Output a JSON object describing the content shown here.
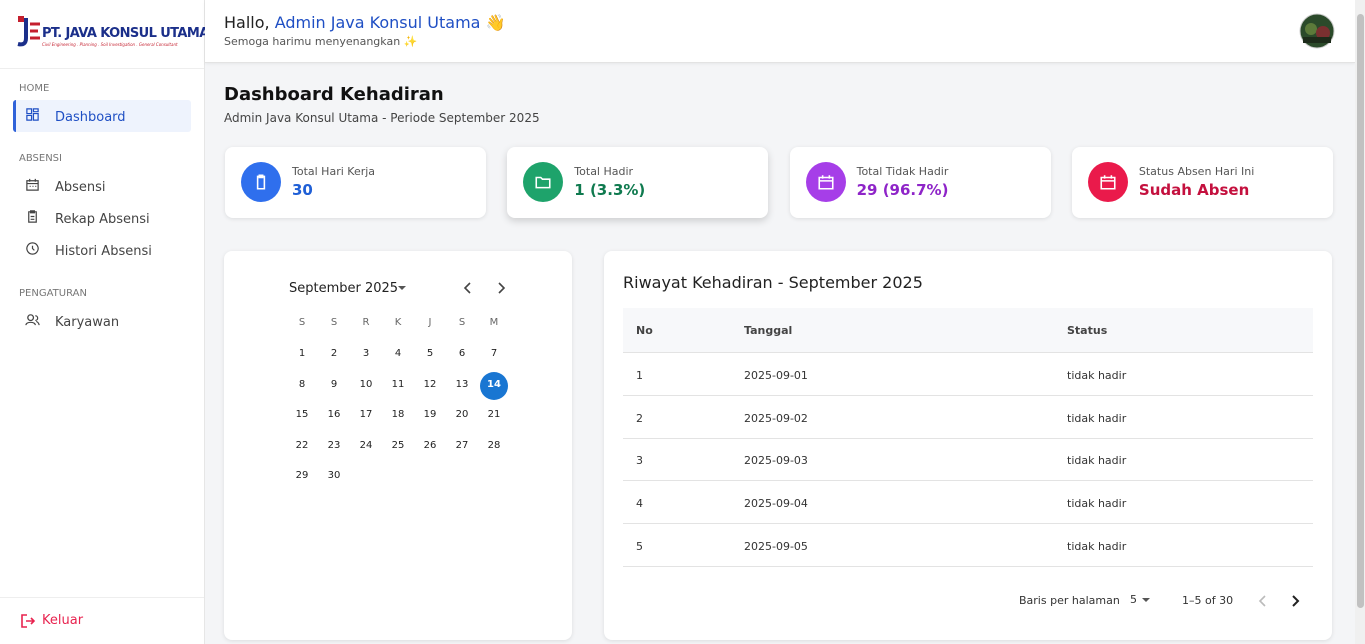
{
  "logo": {
    "name": "PT. JAVA KONSUL UTAMA",
    "tagline": "Civil Engineering . Planning . Soil Investigation . General Consultant"
  },
  "sidebar": {
    "sections": [
      {
        "title": "HOME",
        "items": [
          {
            "label": "Dashboard",
            "active": true
          }
        ]
      },
      {
        "title": "ABSENSI",
        "items": [
          {
            "label": "Absensi"
          },
          {
            "label": "Rekap Absensi"
          },
          {
            "label": "Histori Absensi"
          }
        ]
      },
      {
        "title": "PENGATURAN",
        "items": [
          {
            "label": "Karyawan"
          }
        ]
      }
    ],
    "logout": "Keluar"
  },
  "header": {
    "greeting": "Hallo,",
    "user": "Admin Java Konsul Utama",
    "wave": "👋",
    "message": "Semoga harimu menyenangkan ✨"
  },
  "page": {
    "title": "Dashboard Kehadiran",
    "subtitle": "Admin Java Konsul Utama - Periode September 2025"
  },
  "cards": [
    {
      "label": "Total Hari Kerja",
      "value": "30",
      "color": "#2f6fed",
      "text_color": "#1f5fd6"
    },
    {
      "label": "Total Hadir",
      "value": "1 (3.3%)",
      "color": "#1ea36b",
      "text_color": "#0f7a4f"
    },
    {
      "label": "Total Tidak Hadir",
      "value": "29 (96.7%)",
      "color": "#a63ee8",
      "text_color": "#8e24c8"
    },
    {
      "label": "Status Absen Hari Ini",
      "value": "Sudah Absen",
      "color": "#ea1a4b",
      "text_color": "#c4103e"
    }
  ],
  "calendar": {
    "month": "September 2025",
    "weekdays": [
      "S",
      "S",
      "R",
      "K",
      "J",
      "S",
      "M"
    ],
    "days": [
      1,
      2,
      3,
      4,
      5,
      6,
      7,
      8,
      9,
      10,
      11,
      12,
      13,
      14,
      15,
      16,
      17,
      18,
      19,
      20,
      21,
      22,
      23,
      24,
      25,
      26,
      27,
      28,
      29,
      30
    ],
    "selected": 14
  },
  "table": {
    "title": "Riwayat Kehadiran - September 2025",
    "headers": [
      "No",
      "Tanggal",
      "Status"
    ],
    "rows": [
      [
        1,
        "2025-09-01",
        "tidak hadir"
      ],
      [
        2,
        "2025-09-02",
        "tidak hadir"
      ],
      [
        3,
        "2025-09-03",
        "tidak hadir"
      ],
      [
        4,
        "2025-09-04",
        "tidak hadir"
      ],
      [
        5,
        "2025-09-05",
        "tidak hadir"
      ]
    ],
    "rows_label": "Baris per halaman",
    "rows_per_page": 5,
    "range": "1–5 of 30"
  }
}
